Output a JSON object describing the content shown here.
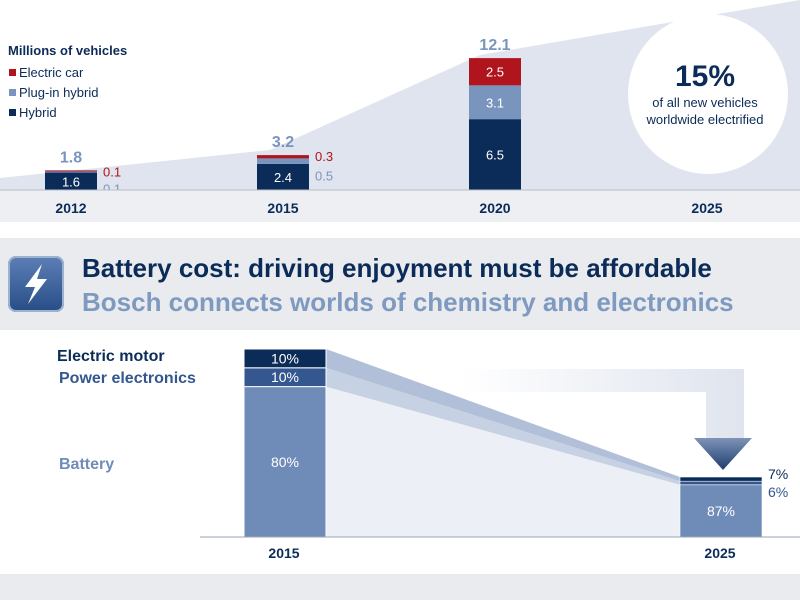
{
  "chart_data": [
    {
      "type": "bar",
      "stacked": true,
      "title": "",
      "ylabel": "Millions of vehicles",
      "legend_placement": "top-left",
      "categories": [
        "2012",
        "2015",
        "2020",
        "2025"
      ],
      "series": [
        {
          "name": "Hybrid",
          "color": "#0b2c58",
          "values": [
            1.6,
            2.4,
            6.5,
            null
          ]
        },
        {
          "name": "Plug-in hybrid",
          "color": "#7a95bd",
          "values": [
            0.1,
            0.5,
            3.1,
            null
          ]
        },
        {
          "name": "Electric car",
          "color": "#b0141d",
          "values": [
            0.1,
            0.3,
            2.5,
            null
          ]
        }
      ],
      "labels": {
        "hybrid": [
          "1.6",
          "2.4",
          "6.5"
        ],
        "plugin": [
          "0.1",
          "0.5",
          "3.1"
        ],
        "electric": [
          "0.1",
          "0.3",
          "2.5"
        ]
      },
      "totals": [
        1.8,
        3.2,
        12.1
      ],
      "total_labels": [
        "1.8",
        "3.2",
        "12.1"
      ],
      "callout": {
        "value": "15%",
        "line1": "of all new vehicles",
        "line2": "worldwide electrified"
      }
    },
    {
      "type": "bar",
      "stacked": true,
      "percent": true,
      "categories": [
        "2015",
        "2025"
      ],
      "series": [
        {
          "name": "Battery",
          "color": "#6f8cb8",
          "values": [
            80,
            87
          ]
        },
        {
          "name": "Power electronics",
          "color": "#34578f",
          "values": [
            10,
            6
          ]
        },
        {
          "name": "Electric motor",
          "color": "#0b2c58",
          "values": [
            10,
            7
          ]
        }
      ],
      "labels_2015": [
        "80%",
        "10%",
        "10%"
      ],
      "labels_2025": [
        "87%",
        "6%",
        "7%"
      ]
    }
  ],
  "header": {
    "title": "Battery cost: driving enjoyment must be affordable",
    "subtitle": "Bosch connects worlds of chemistry and electronics",
    "icon": "lightning-bolt-icon"
  }
}
